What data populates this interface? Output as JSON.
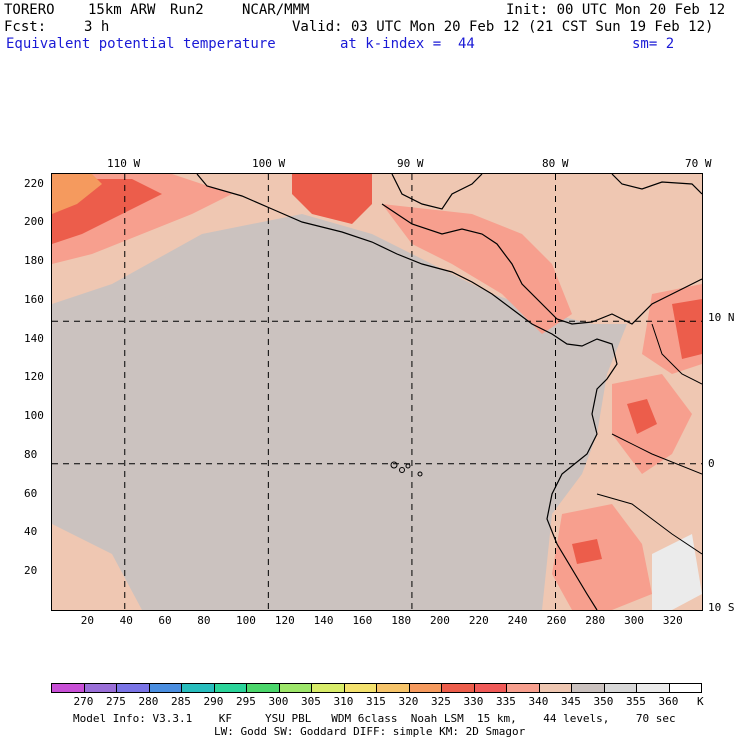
{
  "header": {
    "model": "TORERO",
    "resolution": "15km ARW",
    "run": "Run2",
    "org": "NCAR/MMM",
    "init": "Init: 00 UTC Mon 20 Feb 12",
    "fcst_label": "Fcst:",
    "fcst_value": "3 h",
    "valid": "Valid: 03 UTC Mon 20 Feb 12 (21 CST Sun 19 Feb 12)",
    "field": "Equivalent potential temperature",
    "level": "at k-index =  44",
    "smoothing": "sm= 2"
  },
  "map": {
    "top_lon_labels": [
      "110 W",
      "100 W",
      "90 W",
      "80 W",
      "70 W"
    ],
    "right_lat_labels": [
      "10 N",
      "0",
      "10 S"
    ],
    "y_grid_labels": [
      "220",
      "200",
      "180",
      "160",
      "140",
      "120",
      "100",
      "80",
      "60",
      "40",
      "20"
    ],
    "x_grid_labels": [
      "20",
      "40",
      "60",
      "80",
      "100",
      "120",
      "140",
      "160",
      "180",
      "200",
      "220",
      "240",
      "260",
      "280",
      "300",
      "320"
    ],
    "x_range": [
      0,
      335
    ],
    "y_range": [
      0,
      225
    ],
    "lon_lines_x": [
      37.5,
      111.5,
      185.5,
      259.5
    ],
    "lat_lines_y": [
      149,
      75.5
    ],
    "colors": {
      "background": "#cbc2bf",
      "coast": "#000000",
      "gridline": "#000000"
    }
  },
  "colorbar": {
    "values": [
      "270",
      "275",
      "280",
      "285",
      "290",
      "295",
      "300",
      "305",
      "310",
      "315",
      "320",
      "325",
      "330",
      "335",
      "340",
      "345",
      "350",
      "355",
      "360"
    ],
    "unit": "K",
    "colors": [
      "#c84fd6",
      "#9a6fd8",
      "#7a74e6",
      "#4a8ee0",
      "#28bdbd",
      "#2bd49a",
      "#4bd66b",
      "#9de66a",
      "#d8ec6a",
      "#f3e16e",
      "#f6c46a",
      "#f59a5e",
      "#ec5d4b",
      "#f05a58",
      "#f79f8e",
      "#efc7b2",
      "#cbc2bf",
      "#d8d8d8",
      "#ebebeb",
      "#ffffff"
    ]
  },
  "footer": {
    "line1": "Model Info: V3.3.1    KF     YSU PBL   WDM 6class  Noah LSM  15 km,    44 levels,    70 sec",
    "line2": "LW: Godd SW: Goddard DIFF: simple KM: 2D Smagor"
  }
}
